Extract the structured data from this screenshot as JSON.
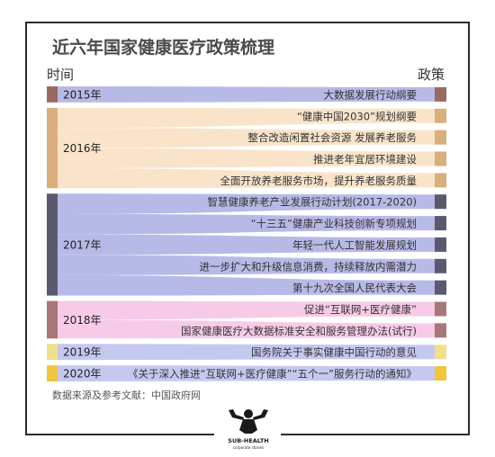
{
  "title": "近六年国家健康医疗政策梳理",
  "left_header": "时间",
  "right_header": "政策",
  "source": "数据来源及参考文献：中国政府网",
  "logo": {
    "icon": "muscle-man-logo",
    "name": "SUB-HEALTH",
    "tagline": "corporate stories"
  },
  "chart_data": {
    "type": "sankey",
    "title": "近六年国家健康医疗政策梳理",
    "nodes_left": [
      {
        "label": "2015年",
        "color": "#9a6a62",
        "flow_color": "#b3b6e6"
      },
      {
        "label": "2016年",
        "color": "#d9b07c",
        "flow_color": "#f9e3c7"
      },
      {
        "label": "2017年",
        "color": "#5a5a6e",
        "flow_color": "#b3b6e6"
      },
      {
        "label": "2018年",
        "color": "#a87777",
        "flow_color": "#f7c8e6"
      },
      {
        "label": "2019年",
        "color": "#f0e08a",
        "flow_color": "#c2c6ef"
      },
      {
        "label": "2020年",
        "color": "#f2c53a",
        "flow_color": "#c2c6ef"
      }
    ],
    "links": [
      {
        "year": "2015年",
        "policy": "大数据发展行动纲要"
      },
      {
        "year": "2016年",
        "policy": "“健康中国2030”规划纲要"
      },
      {
        "year": "2016年",
        "policy": "整合改造闲置社会资源 发展养老服务"
      },
      {
        "year": "2016年",
        "policy": "推进老年宜居环境建设"
      },
      {
        "year": "2016年",
        "policy": "全面开放养老服务市场，提升养老服务质量"
      },
      {
        "year": "2017年",
        "policy": "智慧健康养老产业发展行动计划(2017-2020)"
      },
      {
        "year": "2017年",
        "policy": "“十三五”健康产业科技创新专项规划"
      },
      {
        "year": "2017年",
        "policy": "年轻一代人工智能发展规划"
      },
      {
        "year": "2017年",
        "policy": "进一步扩大和升级信息消费，持续释放内需潜力"
      },
      {
        "year": "2017年",
        "policy": "第十九次全国人民代表大会"
      },
      {
        "year": "2018年",
        "policy": "促进“互联网+医疗健康”"
      },
      {
        "year": "2018年",
        "policy": "国家健康医疗大数据标准安全和服务管理办法(试行)"
      },
      {
        "year": "2019年",
        "policy": "国务院关于事实健康中国行动的意见"
      },
      {
        "year": "2020年",
        "policy": "《关于深入推进“互联网+医疗健康”“五个一”服务行动的通知》"
      }
    ]
  }
}
